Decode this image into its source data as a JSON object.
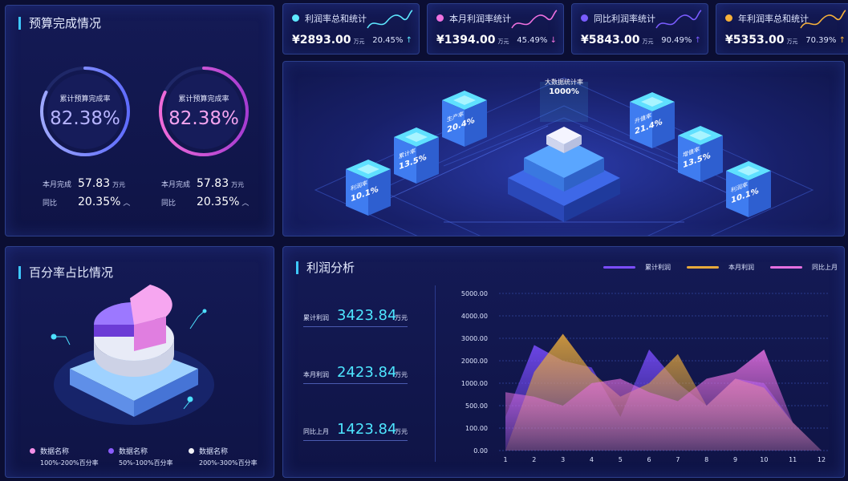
{
  "budget": {
    "title": "预算完成情况",
    "gauges": [
      {
        "label": "累计预算完成率",
        "value": "82.38%",
        "month_label": "本月完成",
        "month_value": "57.83",
        "unit": "万元",
        "yoy_label": "同比",
        "yoy_value": "20.35%"
      },
      {
        "label": "累计预算完成率",
        "value": "82.38%",
        "month_label": "本月完成",
        "month_value": "57.83",
        "unit": "万元",
        "yoy_label": "同比",
        "yoy_value": "20.35%"
      }
    ]
  },
  "stats": [
    {
      "label": "利润率总和统计",
      "value": "¥2893.00",
      "unit": "万元",
      "pct": "20.45%",
      "arrow": "↑",
      "color": "#5ee8ff"
    },
    {
      "label": "本月利润率统计",
      "value": "¥1394.00",
      "unit": "万元",
      "pct": "45.49%",
      "arrow": "↓",
      "color": "#f071e0"
    },
    {
      "label": "同比利润率统计",
      "value": "¥5843.00",
      "unit": "万元",
      "pct": "90.49%",
      "arrow": "↑",
      "color": "#7a5cff"
    },
    {
      "label": "年利润率总和统计",
      "value": "¥5353.00",
      "unit": "万元",
      "pct": "70.39%",
      "arrow": "↑",
      "color": "#f7b13a"
    }
  ],
  "iso": {
    "center_label": "大数据统计率",
    "center_value": "1000%",
    "blocks": [
      {
        "label": "利润率",
        "value": "10.1%"
      },
      {
        "label": "累计率",
        "value": "13.5%"
      },
      {
        "label": "生产率",
        "value": "20.4%"
      },
      {
        "label": "升值率",
        "value": "21.4%"
      },
      {
        "label": "增值率",
        "value": "13.5%"
      },
      {
        "label": "利润率",
        "value": "10.1%"
      }
    ]
  },
  "percent": {
    "title": "百分率占比情况",
    "legend": [
      {
        "name": "数据名称",
        "range": "100%-200%百分率",
        "color": "#f48fe8"
      },
      {
        "name": "数据名称",
        "range": "50%-100%百分率",
        "color": "#8b5cff"
      },
      {
        "name": "数据名称",
        "range": "200%-300%百分率",
        "color": "#f2f2f7"
      }
    ]
  },
  "profit": {
    "title": "利润分析",
    "rows": [
      {
        "name": "累计利润",
        "value": "3423.84",
        "unit": "万元"
      },
      {
        "name": "本月利润",
        "value": "2423.84",
        "unit": "万元"
      },
      {
        "name": "同比上月",
        "value": "1423.84",
        "unit": "万元"
      }
    ],
    "legend": [
      {
        "name": "累计利润",
        "color": "#7b4dff"
      },
      {
        "name": "本月利润",
        "color": "#e7a93b"
      },
      {
        "name": "同比上月",
        "color": "#e56fe0"
      }
    ]
  },
  "chart_data": {
    "type": "area",
    "x": [
      1,
      2,
      3,
      4,
      5,
      6,
      7,
      8,
      9,
      10,
      11,
      12
    ],
    "ylim": [
      0,
      5000
    ],
    "yticks": [
      "5000.00",
      "4000.00",
      "3000.00",
      "2000.00",
      "1000.00",
      "500.00",
      "100.00",
      "0.00"
    ],
    "series": [
      {
        "name": "累计利润",
        "color": "#7b4dff",
        "values": [
          300,
          2700,
          2000,
          1700,
          300,
          2500,
          1000,
          500,
          1200,
          1000,
          200,
          0
        ]
      },
      {
        "name": "本月利润",
        "color": "#e7a93b",
        "values": [
          0,
          1500,
          3200,
          1500,
          700,
          1000,
          2300,
          500,
          1200,
          900,
          200,
          0
        ]
      },
      {
        "name": "同比上月",
        "color": "#e56fe0",
        "values": [
          800,
          700,
          500,
          1000,
          1200,
          800,
          600,
          1200,
          1500,
          2500,
          200,
          0
        ]
      }
    ]
  }
}
